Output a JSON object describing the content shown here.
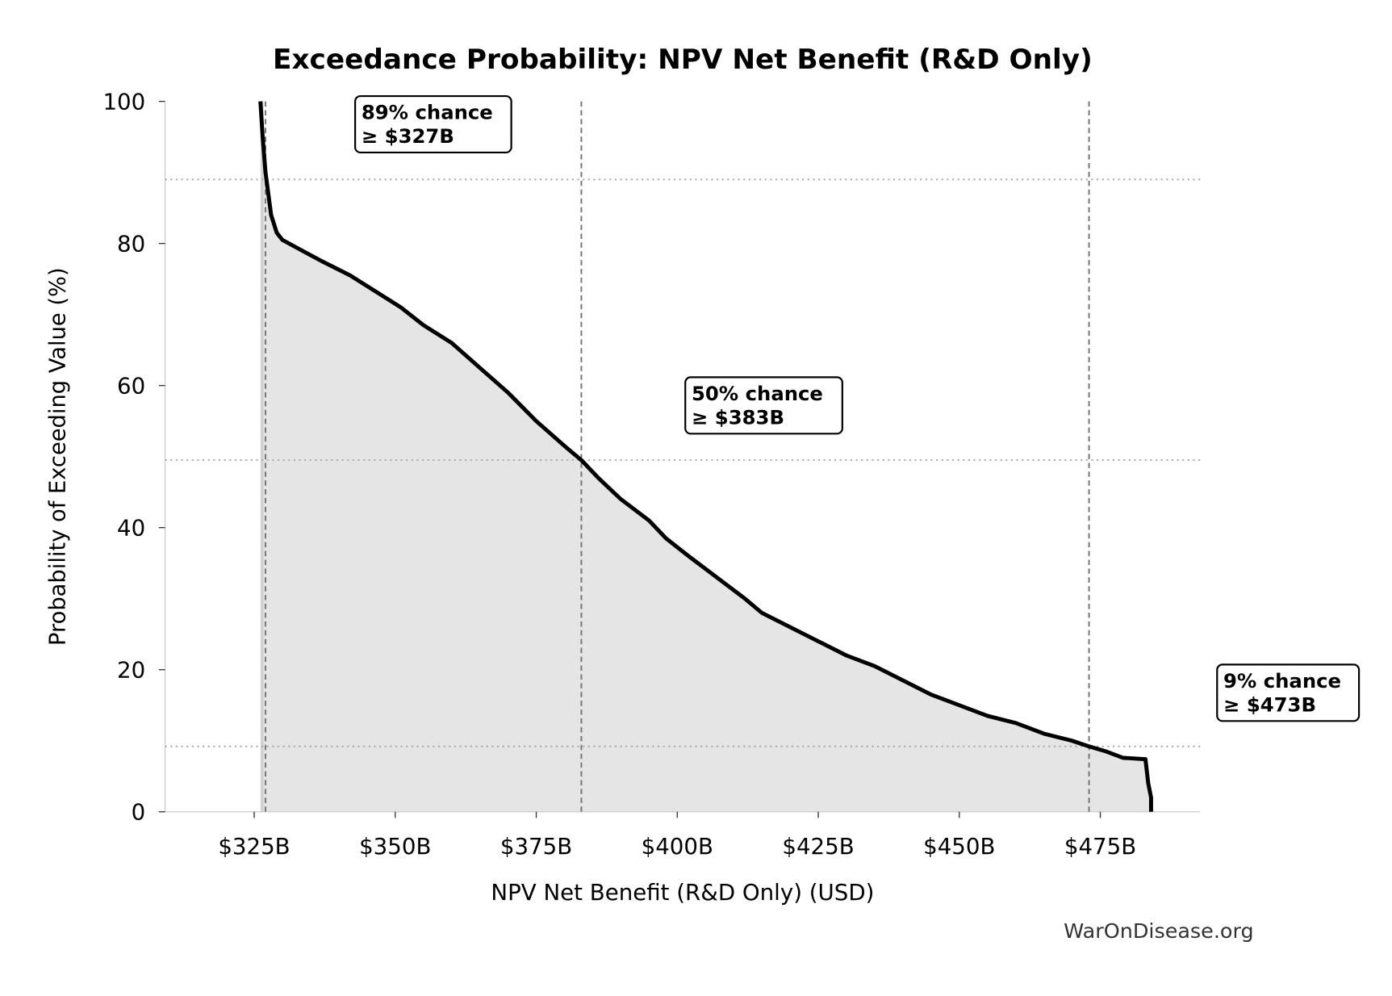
{
  "chart_data": {
    "type": "area",
    "title": "Exceedance Probability: NPV Net Benefit (R&D Only)",
    "xlabel": "NPV Net Benefit (R&D Only) (USD)",
    "ylabel": "Probability of Exceeding Value (%)",
    "xlim": [
      309.2,
      492.7
    ],
    "ylim": [
      0,
      100
    ],
    "x_ticks": [
      325,
      350,
      375,
      400,
      425,
      450,
      475
    ],
    "x_tick_labels": [
      "$325B",
      "$350B",
      "$375B",
      "$400B",
      "$425B",
      "$450B",
      "$475B"
    ],
    "y_ticks": [
      0,
      20,
      40,
      60,
      80,
      100
    ],
    "y_tick_labels": [
      "0",
      "20",
      "40",
      "60",
      "80",
      "100"
    ],
    "grid": false,
    "line_color": "#000000",
    "fill_color": "#e5e5e5",
    "series": [
      {
        "x": [
          326.1,
          326.5,
          327,
          327.5,
          328,
          329,
          330,
          333,
          337,
          342,
          347,
          351,
          355,
          360,
          365,
          370,
          375,
          380,
          383,
          386,
          390,
          395,
          398,
          402,
          407,
          412,
          415,
          420,
          425,
          430,
          435,
          440,
          445,
          450,
          455,
          460,
          465,
          470,
          473,
          476,
          479,
          483,
          483.5,
          484,
          484
        ],
        "y": [
          100,
          95,
          90,
          87,
          84,
          81.5,
          80.5,
          79.2,
          77.5,
          75.5,
          73,
          71,
          68.5,
          66,
          62.5,
          59,
          55,
          51.5,
          49.5,
          47,
          44,
          41,
          38.5,
          36,
          33,
          30,
          28,
          26,
          24,
          22,
          20.5,
          18.5,
          16.5,
          15,
          13.5,
          12.5,
          11,
          10,
          9.2,
          8.5,
          7.6,
          7.4,
          4,
          2,
          0
        ]
      }
    ],
    "annotations": [
      {
        "prob": 89,
        "value": 327,
        "line1": "89% chance",
        "line2": "≥ $327B"
      },
      {
        "prob": 49.5,
        "value": 383,
        "line1": "50% chance",
        "line2": "≥ $383B"
      },
      {
        "prob": 9.2,
        "value": 473,
        "line1": "9% chance",
        "line2": "≥ $473B"
      }
    ]
  },
  "watermark": "WarOnDisease.org"
}
